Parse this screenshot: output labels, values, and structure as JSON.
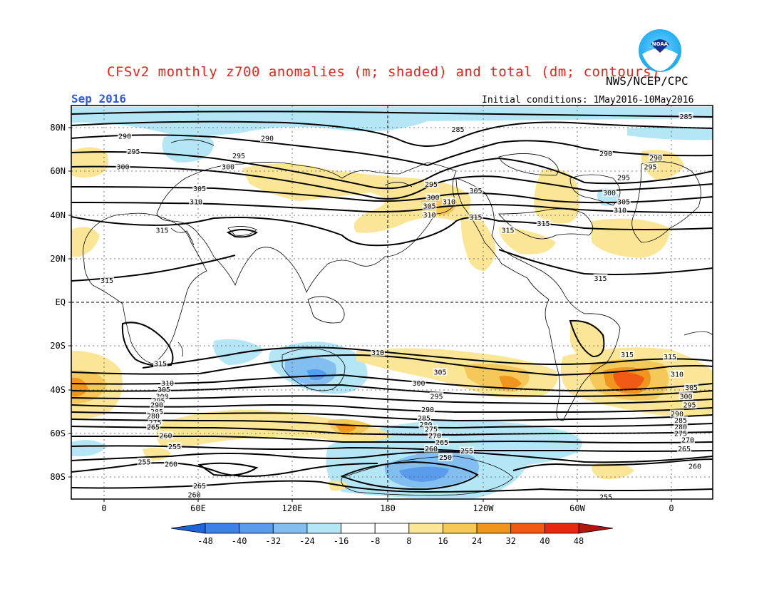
{
  "header": {
    "title": "CFSv2 monthly z700 anomalies (m; shaded) and total (dm; contours)",
    "agency": "NWS/NCEP/CPC",
    "valid_month": "Sep 2016",
    "initial_conditions": "Initial conditions: 1May2016-10May2016",
    "logo_text": "NOAA"
  },
  "axes": {
    "lat_labels": [
      "80N",
      "60N",
      "40N",
      "20N",
      "EQ",
      "20S",
      "40S",
      "60S",
      "80S"
    ],
    "lon_labels": [
      "0",
      "60E",
      "120E",
      "180",
      "120W",
      "60W",
      "0"
    ]
  },
  "colorbar": {
    "labels": [
      "-48",
      "-40",
      "-32",
      "-24",
      "-16",
      "-8",
      "8",
      "16",
      "24",
      "32",
      "40",
      "48"
    ],
    "colors": [
      "#1e64dc",
      "#3c82e6",
      "#5a9ceb",
      "#82bef0",
      "#b4e6f5",
      "#ffffff",
      "#fae696",
      "#f5c85a",
      "#f0961e",
      "#f05a14",
      "#e6280f",
      "#b4140a"
    ]
  },
  "contours": {
    "labels": [
      {
        "text": "285",
        "lon": -35,
        "lat": 85
      },
      {
        "text": "285",
        "lon": -163,
        "lat": 79
      },
      {
        "text": "290",
        "lon": 90,
        "lat": 75
      },
      {
        "text": "290",
        "lon": -80,
        "lat": 68
      },
      {
        "text": "295",
        "lon": 74,
        "lat": 67
      },
      {
        "text": "300",
        "lon": 68,
        "lat": 62
      },
      {
        "text": "295",
        "lon": -178,
        "lat": 54
      },
      {
        "text": "305",
        "lon": -153,
        "lat": 51
      },
      {
        "text": "300",
        "lon": -177,
        "lat": 48
      },
      {
        "text": "305",
        "lon": -179,
        "lat": 44
      },
      {
        "text": "310",
        "lon": -168,
        "lat": 46
      },
      {
        "text": "310",
        "lon": -179,
        "lat": 40
      },
      {
        "text": "315",
        "lon": -153,
        "lat": 39
      },
      {
        "text": "315",
        "lon": -115,
        "lat": 36
      },
      {
        "text": "315",
        "lon": -135,
        "lat": 33
      },
      {
        "text": "315",
        "lon": -83,
        "lat": 11
      },
      {
        "text": "300",
        "lon": -78,
        "lat": 50
      },
      {
        "text": "295",
        "lon": -70,
        "lat": 57
      },
      {
        "text": "305",
        "lon": -70,
        "lat": 46
      },
      {
        "text": "310",
        "lon": -72,
        "lat": 42
      },
      {
        "text": "290",
        "lon": -52,
        "lat": 66
      },
      {
        "text": "295",
        "lon": -55,
        "lat": 62
      },
      {
        "text": "310",
        "lon": 152,
        "lat": -23
      },
      {
        "text": "305",
        "lon": -173,
        "lat": -32
      },
      {
        "text": "300",
        "lon": -185,
        "lat": -37
      },
      {
        "text": "295",
        "lon": -175,
        "lat": -43
      },
      {
        "text": "290",
        "lon": -180,
        "lat": -49
      },
      {
        "text": "285",
        "lon": -182,
        "lat": -53
      },
      {
        "text": "280",
        "lon": -181,
        "lat": -56
      },
      {
        "text": "275",
        "lon": -178,
        "lat": -58
      },
      {
        "text": "270",
        "lon": -176,
        "lat": -61
      },
      {
        "text": "265",
        "lon": -172,
        "lat": -64
      },
      {
        "text": "260",
        "lon": -178,
        "lat": -67
      },
      {
        "text": "255",
        "lon": -158,
        "lat": -68
      },
      {
        "text": "250",
        "lon": -170,
        "lat": -71
      },
      {
        "text": "255",
        "lon": -80,
        "lat": -89
      },
      {
        "text": "315",
        "lon": -68,
        "lat": -24
      },
      {
        "text": "315",
        "lon": -44,
        "lat": -25
      },
      {
        "text": "310",
        "lon": -40,
        "lat": -33
      },
      {
        "text": "305",
        "lon": -32,
        "lat": -39
      },
      {
        "text": "300",
        "lon": -35,
        "lat": -43
      },
      {
        "text": "295",
        "lon": -33,
        "lat": -47
      },
      {
        "text": "290",
        "lon": -40,
        "lat": -51
      },
      {
        "text": "285",
        "lon": -38,
        "lat": -54
      },
      {
        "text": "280",
        "lon": -38,
        "lat": -57
      },
      {
        "text": "275",
        "lon": -38,
        "lat": -60
      },
      {
        "text": "270",
        "lon": -34,
        "lat": -63
      },
      {
        "text": "265",
        "lon": -36,
        "lat": -67
      },
      {
        "text": "260",
        "lon": -30,
        "lat": -75
      },
      {
        "text": "315",
        "lon": 0,
        "lat": 10
      },
      {
        "text": "315",
        "lon": 30,
        "lat": -28
      },
      {
        "text": "310",
        "lon": 34,
        "lat": -37
      },
      {
        "text": "305",
        "lon": 32,
        "lat": -40
      },
      {
        "text": "300",
        "lon": 31,
        "lat": -43
      },
      {
        "text": "295",
        "lon": 29,
        "lat": -45
      },
      {
        "text": "290",
        "lon": 28,
        "lat": -47
      },
      {
        "text": "285",
        "lon": 28,
        "lat": -50
      },
      {
        "text": "280",
        "lon": 26,
        "lat": -52
      },
      {
        "text": "275",
        "lon": 27,
        "lat": -55
      },
      {
        "text": "265",
        "lon": 26,
        "lat": -57
      },
      {
        "text": "260",
        "lon": 33,
        "lat": -61
      },
      {
        "text": "255",
        "lon": 38,
        "lat": -66
      },
      {
        "text": "255",
        "lon": 21,
        "lat": -73
      },
      {
        "text": "260",
        "lon": 36,
        "lat": -74
      },
      {
        "text": "265",
        "lon": 52,
        "lat": -84
      },
      {
        "text": "260",
        "lon": 49,
        "lat": -88
      },
      {
        "text": "315",
        "lon": 31,
        "lat": 33
      },
      {
        "text": "300",
        "lon": 9,
        "lat": 62
      },
      {
        "text": "295",
        "lon": 15,
        "lat": 69
      },
      {
        "text": "290",
        "lon": 10,
        "lat": 76
      },
      {
        "text": "305",
        "lon": 52,
        "lat": 52
      },
      {
        "text": "310",
        "lon": 50,
        "lat": 46
      }
    ]
  }
}
